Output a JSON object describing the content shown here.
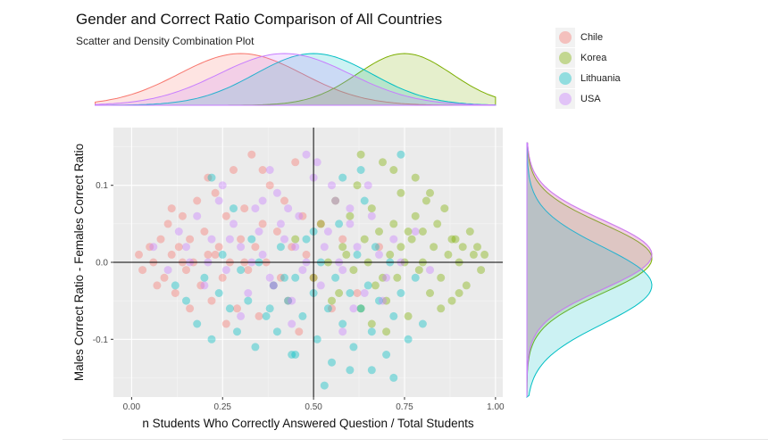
{
  "header": {
    "title": "Gender and Correct Ratio Comparison of All Countries",
    "subtitle": "Scatter and Density Combination Plot"
  },
  "legend": {
    "items": [
      {
        "label": "Chile",
        "color": "#f8766d"
      },
      {
        "label": "Korea",
        "color": "#7cae00"
      },
      {
        "label": "Lithuania",
        "color": "#00bfc4"
      },
      {
        "label": "USA",
        "color": "#c77cff"
      }
    ]
  },
  "chart_data": {
    "type": "scatter",
    "xlabel": "n Students Who Correctly Answered Question / Total Students",
    "ylabel": "Males Correct Ratio - Females Correct Ratio",
    "xlim": [
      -0.05,
      1.02
    ],
    "ylim": [
      -0.175,
      0.175
    ],
    "x_ticks": [
      0.0,
      0.25,
      0.5,
      0.75,
      1.0
    ],
    "x_tick_labels": [
      "0.00",
      "0.25",
      "0.50",
      "0.75",
      "1.00"
    ],
    "y_ticks": [
      -0.1,
      0.0,
      0.1
    ],
    "y_tick_labels": [
      "-0.1",
      "0.0",
      "0.1"
    ],
    "reference_lines": {
      "x": 0.5,
      "y": 0.0
    },
    "grid": true,
    "series": [
      {
        "name": "Chile",
        "color": "#f8766d",
        "x_center": 0.3,
        "x_spread": 0.17,
        "y_center": 0.01,
        "y_spread": 0.045,
        "points": [
          [
            0.02,
            0.01
          ],
          [
            0.03,
            -0.01
          ],
          [
            0.05,
            0.02
          ],
          [
            0.06,
            0.0
          ],
          [
            0.08,
            0.03
          ],
          [
            0.09,
            -0.02
          ],
          [
            0.1,
            0.05
          ],
          [
            0.11,
            0.01
          ],
          [
            0.12,
            -0.04
          ],
          [
            0.13,
            0.02
          ],
          [
            0.14,
            0.06
          ],
          [
            0.15,
            -0.01
          ],
          [
            0.16,
            0.03
          ],
          [
            0.17,
            0.0
          ],
          [
            0.18,
            0.08
          ],
          [
            0.19,
            -0.03
          ],
          [
            0.2,
            0.04
          ],
          [
            0.21,
            0.01
          ],
          [
            0.22,
            -0.05
          ],
          [
            0.23,
            0.09
          ],
          [
            0.24,
            0.02
          ],
          [
            0.25,
            -0.02
          ],
          [
            0.26,
            0.06
          ],
          [
            0.27,
            0.0
          ],
          [
            0.28,
            0.12
          ],
          [
            0.29,
            -0.06
          ],
          [
            0.3,
            0.03
          ],
          [
            0.31,
            0.07
          ],
          [
            0.32,
            -0.01
          ],
          [
            0.33,
            0.14
          ],
          [
            0.34,
            0.02
          ],
          [
            0.35,
            -0.07
          ],
          [
            0.36,
            0.05
          ],
          [
            0.37,
            0.0
          ],
          [
            0.38,
            0.1
          ],
          [
            0.39,
            -0.03
          ],
          [
            0.4,
            0.04
          ],
          [
            0.42,
            0.08
          ],
          [
            0.43,
            -0.05
          ],
          [
            0.44,
            0.02
          ],
          [
            0.45,
            0.13
          ],
          [
            0.46,
            -0.09
          ],
          [
            0.47,
            0.06
          ],
          [
            0.48,
            0.01
          ],
          [
            0.5,
            -0.02
          ],
          [
            0.52,
            0.05
          ],
          [
            0.55,
            -0.06
          ],
          [
            0.58,
            0.03
          ],
          [
            0.62,
            -0.04
          ],
          [
            0.68,
            0.02
          ],
          [
            0.07,
            -0.03
          ],
          [
            0.11,
            0.07
          ],
          [
            0.16,
            -0.06
          ],
          [
            0.21,
            0.11
          ],
          [
            0.26,
            -0.08
          ],
          [
            0.31,
            0.0
          ],
          [
            0.36,
            0.12
          ],
          [
            0.41,
            -0.02
          ],
          [
            0.14,
            0.0
          ],
          [
            0.23,
            0.01
          ]
        ]
      },
      {
        "name": "Korea",
        "color": "#7cae00",
        "x_center": 0.75,
        "x_spread": 0.13,
        "y_center": 0.005,
        "y_spread": 0.045,
        "points": [
          [
            0.45,
            0.03
          ],
          [
            0.5,
            -0.02
          ],
          [
            0.52,
            0.05
          ],
          [
            0.54,
            0.0
          ],
          [
            0.56,
            0.08
          ],
          [
            0.57,
            -0.04
          ],
          [
            0.58,
            0.02
          ],
          [
            0.6,
            0.06
          ],
          [
            0.61,
            -0.01
          ],
          [
            0.62,
            0.1
          ],
          [
            0.63,
            -0.06
          ],
          [
            0.64,
            0.03
          ],
          [
            0.65,
            0.0
          ],
          [
            0.66,
            0.07
          ],
          [
            0.67,
            -0.03
          ],
          [
            0.68,
            0.04
          ],
          [
            0.69,
            0.13
          ],
          [
            0.7,
            -0.05
          ],
          [
            0.71,
            0.01
          ],
          [
            0.72,
            0.05
          ],
          [
            0.73,
            -0.02
          ],
          [
            0.74,
            0.09
          ],
          [
            0.75,
            0.0
          ],
          [
            0.76,
            -0.07
          ],
          [
            0.77,
            0.03
          ],
          [
            0.78,
            0.06
          ],
          [
            0.79,
            -0.01
          ],
          [
            0.8,
            0.04
          ],
          [
            0.81,
            0.08
          ],
          [
            0.82,
            -0.04
          ],
          [
            0.83,
            0.02
          ],
          [
            0.84,
            0.05
          ],
          [
            0.85,
            -0.02
          ],
          [
            0.86,
            0.07
          ],
          [
            0.87,
            0.01
          ],
          [
            0.88,
            -0.05
          ],
          [
            0.89,
            0.03
          ],
          [
            0.9,
            0.0
          ],
          [
            0.91,
            0.02
          ],
          [
            0.92,
            -0.03
          ],
          [
            0.93,
            0.04
          ],
          [
            0.94,
            0.01
          ],
          [
            0.95,
            0.02
          ],
          [
            0.96,
            -0.01
          ],
          [
            0.97,
            0.01
          ],
          [
            0.63,
            0.14
          ],
          [
            0.7,
            -0.09
          ],
          [
            0.78,
            0.11
          ],
          [
            0.85,
            -0.06
          ],
          [
            0.66,
            -0.08
          ],
          [
            0.74,
            0.02
          ],
          [
            0.8,
            0.0
          ],
          [
            0.88,
            0.03
          ],
          [
            0.59,
            0.01
          ],
          [
            0.55,
            -0.05
          ],
          [
            0.82,
            0.09
          ],
          [
            0.9,
            -0.04
          ],
          [
            0.76,
            0.04
          ],
          [
            0.69,
            -0.02
          ],
          [
            0.72,
            0.12
          ]
        ]
      },
      {
        "name": "Lithuania",
        "color": "#00bfc4",
        "x_center": 0.5,
        "x_spread": 0.16,
        "y_center": -0.03,
        "y_spread": 0.05,
        "points": [
          [
            0.12,
            -0.03
          ],
          [
            0.15,
            -0.05
          ],
          [
            0.18,
            -0.08
          ],
          [
            0.2,
            -0.02
          ],
          [
            0.22,
            -0.1
          ],
          [
            0.24,
            -0.04
          ],
          [
            0.25,
            0.01
          ],
          [
            0.27,
            -0.06
          ],
          [
            0.29,
            -0.09
          ],
          [
            0.3,
            -0.01
          ],
          [
            0.32,
            -0.05
          ],
          [
            0.34,
            -0.11
          ],
          [
            0.35,
            0.0
          ],
          [
            0.37,
            -0.07
          ],
          [
            0.39,
            -0.03
          ],
          [
            0.4,
            -0.09
          ],
          [
            0.41,
            0.02
          ],
          [
            0.43,
            -0.05
          ],
          [
            0.44,
            -0.12
          ],
          [
            0.45,
            -0.02
          ],
          [
            0.47,
            -0.07
          ],
          [
            0.48,
            0.03
          ],
          [
            0.5,
            -0.04
          ],
          [
            0.51,
            -0.1
          ],
          [
            0.52,
            0.0
          ],
          [
            0.54,
            -0.06
          ],
          [
            0.55,
            -0.13
          ],
          [
            0.56,
            -0.02
          ],
          [
            0.57,
            0.05
          ],
          [
            0.58,
            -0.08
          ],
          [
            0.6,
            -0.04
          ],
          [
            0.61,
            -0.11
          ],
          [
            0.62,
            0.01
          ],
          [
            0.63,
            -0.06
          ],
          [
            0.64,
            0.08
          ],
          [
            0.65,
            -0.03
          ],
          [
            0.66,
            -0.09
          ],
          [
            0.67,
            0.02
          ],
          [
            0.68,
            -0.05
          ],
          [
            0.7,
            -0.12
          ],
          [
            0.71,
            0.0
          ],
          [
            0.72,
            -0.07
          ],
          [
            0.74,
            -0.04
          ],
          [
            0.76,
            -0.1
          ],
          [
            0.78,
            -0.02
          ],
          [
            0.53,
            -0.16
          ],
          [
            0.6,
            -0.14
          ],
          [
            0.45,
            -0.12
          ],
          [
            0.72,
            -0.15
          ],
          [
            0.22,
            0.11
          ],
          [
            0.28,
            0.07
          ],
          [
            0.33,
            0.03
          ],
          [
            0.58,
            0.11
          ],
          [
            0.63,
            0.12
          ],
          [
            0.74,
            0.14
          ],
          [
            0.5,
            0.04
          ],
          [
            0.42,
            -0.02
          ],
          [
            0.66,
            -0.14
          ],
          [
            0.8,
            -0.08
          ],
          [
            0.38,
            -0.06
          ]
        ]
      },
      {
        "name": "USA",
        "color": "#c77cff",
        "x_center": 0.42,
        "x_spread": 0.18,
        "y_center": 0.01,
        "y_spread": 0.045,
        "points": [
          [
            0.06,
            0.02
          ],
          [
            0.1,
            -0.01
          ],
          [
            0.13,
            0.04
          ],
          [
            0.16,
            0.0
          ],
          [
            0.18,
            0.06
          ],
          [
            0.2,
            -0.03
          ],
          [
            0.22,
            0.03
          ],
          [
            0.24,
            0.08
          ],
          [
            0.26,
            -0.01
          ],
          [
            0.28,
            0.05
          ],
          [
            0.3,
            0.02
          ],
          [
            0.32,
            -0.04
          ],
          [
            0.34,
            0.07
          ],
          [
            0.36,
            0.01
          ],
          [
            0.38,
            -0.02
          ],
          [
            0.4,
            0.09
          ],
          [
            0.42,
            0.03
          ],
          [
            0.44,
            -0.05
          ],
          [
            0.46,
            0.06
          ],
          [
            0.48,
            0.0
          ],
          [
            0.5,
            0.11
          ],
          [
            0.52,
            -0.03
          ],
          [
            0.54,
            0.04
          ],
          [
            0.56,
            0.08
          ],
          [
            0.58,
            -0.01
          ],
          [
            0.6,
            0.05
          ],
          [
            0.62,
            0.02
          ],
          [
            0.64,
            -0.04
          ],
          [
            0.66,
            0.06
          ],
          [
            0.68,
            0.01
          ],
          [
            0.7,
            -0.02
          ],
          [
            0.72,
            0.03
          ],
          [
            0.74,
            0.0
          ],
          [
            0.78,
            0.04
          ],
          [
            0.82,
            -0.01
          ],
          [
            0.48,
            0.14
          ],
          [
            0.51,
            0.13
          ],
          [
            0.38,
            0.12
          ],
          [
            0.55,
            0.1
          ],
          [
            0.3,
            -0.07
          ],
          [
            0.44,
            -0.08
          ],
          [
            0.58,
            -0.09
          ],
          [
            0.25,
            0.1
          ],
          [
            0.35,
            0.04
          ],
          [
            0.47,
            -0.01
          ],
          [
            0.6,
            0.07
          ],
          [
            0.33,
            0.0
          ],
          [
            0.41,
            0.05
          ],
          [
            0.53,
            0.02
          ],
          [
            0.21,
            0.0
          ],
          [
            0.65,
            0.1
          ],
          [
            0.39,
            -0.03
          ],
          [
            0.45,
            0.02
          ],
          [
            0.57,
            0.0
          ],
          [
            0.27,
            0.03
          ],
          [
            0.69,
            -0.05
          ],
          [
            0.15,
            0.02
          ],
          [
            0.43,
            0.07
          ],
          [
            0.61,
            -0.06
          ],
          [
            0.36,
            0.08
          ]
        ]
      }
    ]
  }
}
